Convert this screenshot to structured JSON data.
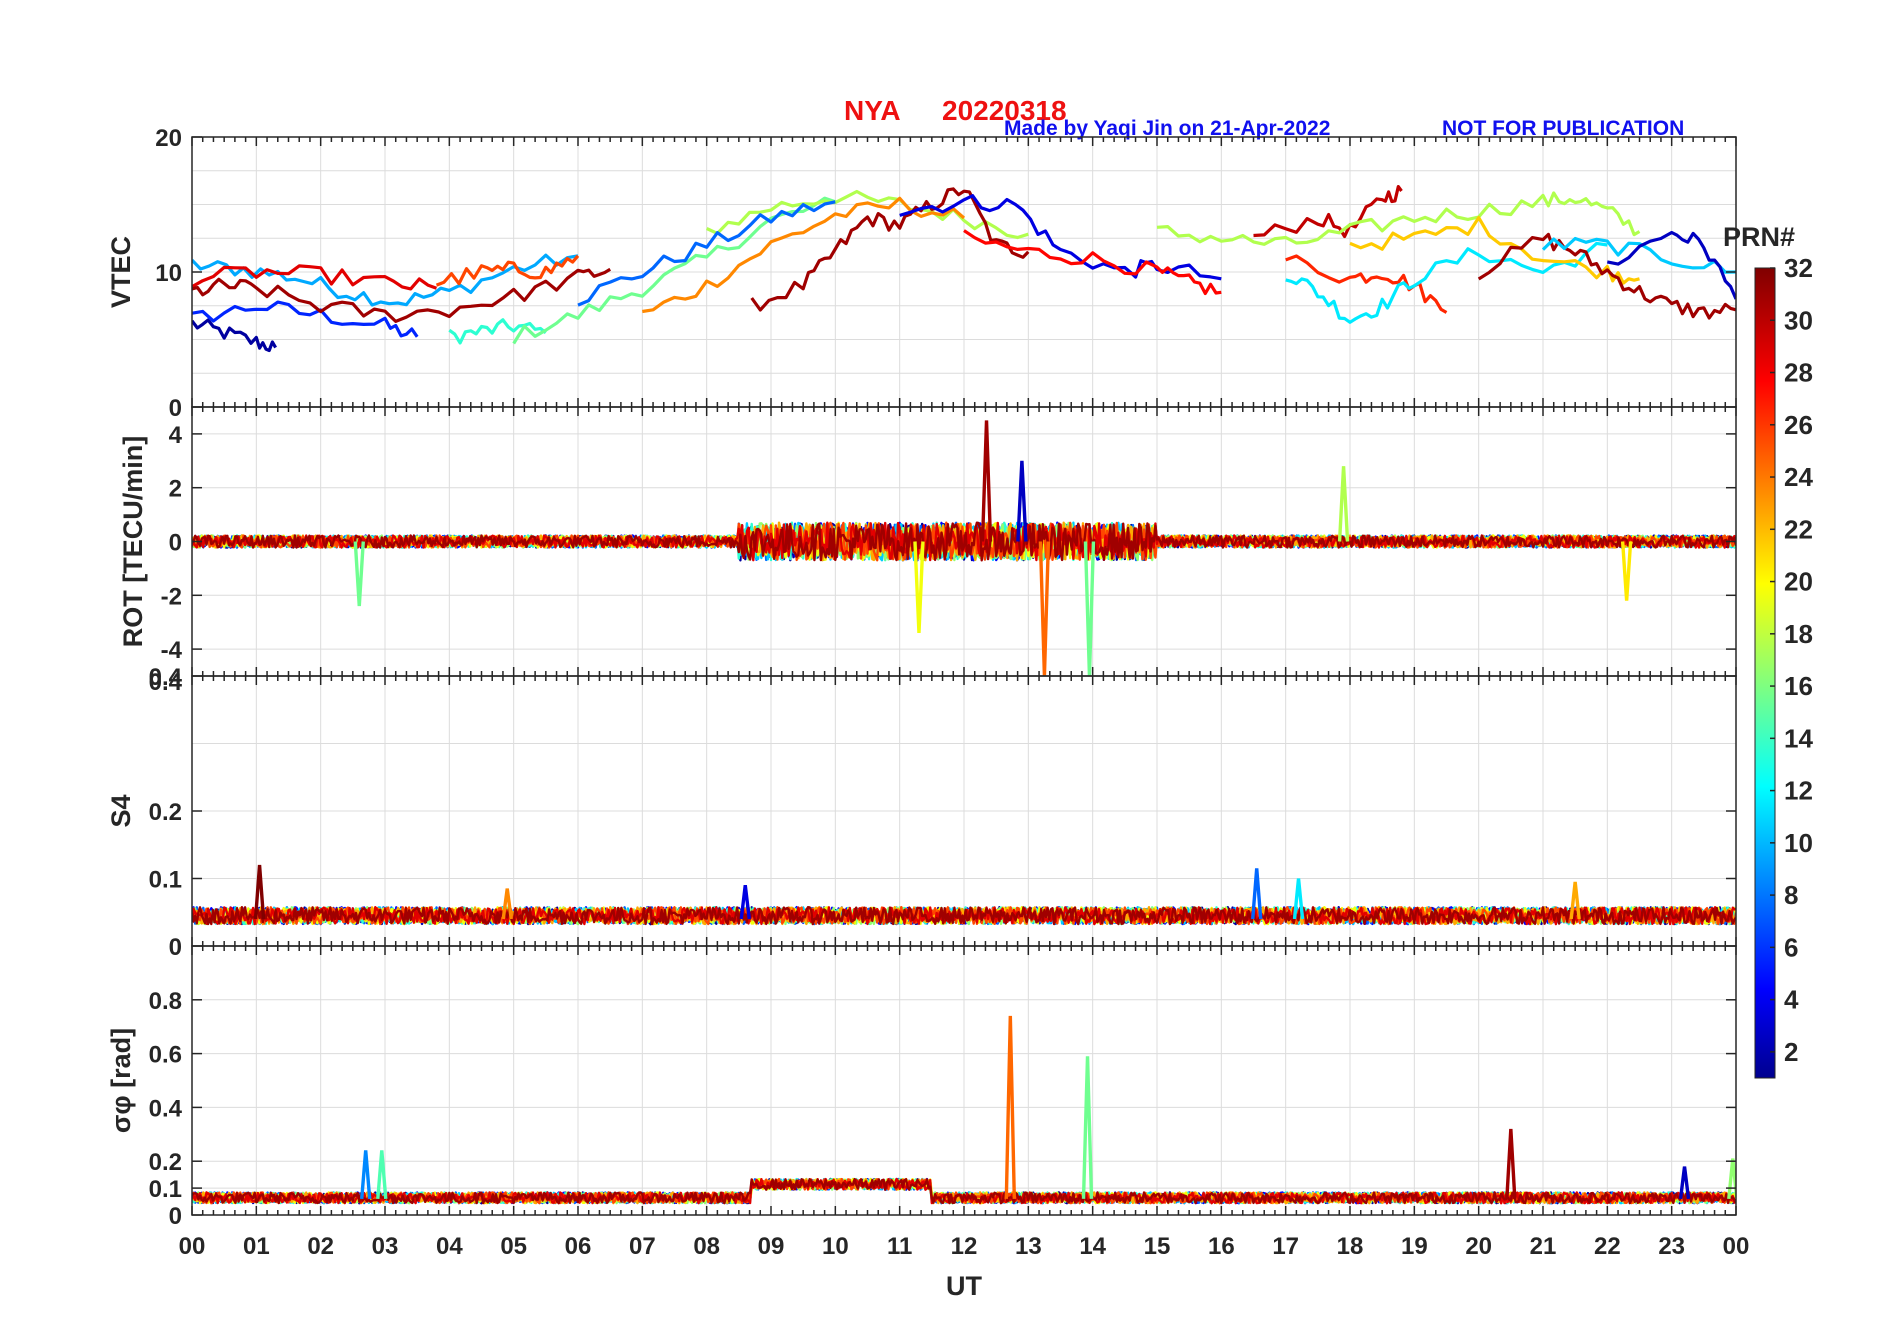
{
  "figure": {
    "station": "NYA",
    "date": "20220318",
    "credit": "Made by Yaqi Jin on 21-Apr-2022",
    "notice": "NOT FOR PUBLICATION",
    "xlabel": "UT",
    "xticks": [
      "00",
      "01",
      "02",
      "03",
      "04",
      "05",
      "06",
      "07",
      "08",
      "09",
      "10",
      "11",
      "12",
      "13",
      "14",
      "15",
      "16",
      "17",
      "18",
      "19",
      "20",
      "21",
      "22",
      "23",
      "00"
    ],
    "colorbar": {
      "label": "PRN#",
      "ticks": [
        2,
        4,
        6,
        8,
        10,
        12,
        14,
        16,
        18,
        20,
        22,
        24,
        26,
        28,
        30,
        32
      ],
      "range": [
        1,
        32
      ],
      "colormap": "jet"
    }
  },
  "chart_data": [
    {
      "type": "line",
      "ylabel": "VTEC",
      "ylim": [
        0,
        20
      ],
      "yticks": [
        0,
        10,
        20
      ],
      "xlim": [
        0,
        24
      ],
      "x_unit": "hours UT",
      "grid": true,
      "series_color_by": "PRN",
      "series": [
        {
          "prn": 2,
          "x": [
            0,
            0.5,
            1,
            1.3
          ],
          "values": [
            6.2,
            5.5,
            4.8,
            4.4
          ]
        },
        {
          "prn": 6,
          "x": [
            0,
            1,
            2,
            3,
            3.5
          ],
          "values": [
            6.5,
            7.5,
            6.8,
            6.0,
            5.2
          ]
        },
        {
          "prn": 10,
          "x": [
            0,
            0.8,
            1.6,
            2.4,
            3.2,
            4,
            5,
            6
          ],
          "values": [
            10.5,
            10.2,
            9.6,
            8.5,
            7.8,
            8.5,
            10.2,
            11.2
          ]
        },
        {
          "prn": 14,
          "x": [
            4,
            4.5,
            5,
            5.5
          ],
          "values": [
            5.2,
            5.6,
            6.0,
            5.5
          ]
        },
        {
          "prn": 16,
          "x": [
            5,
            6,
            7,
            8,
            9,
            10
          ],
          "values": [
            5.2,
            6.8,
            8.8,
            11.0,
            13.8,
            15.2
          ]
        },
        {
          "prn": 18,
          "x": [
            8,
            9,
            10,
            11,
            12,
            13
          ],
          "values": [
            13.0,
            14.8,
            15.6,
            15.0,
            14.0,
            12.8
          ]
        },
        {
          "prn": 8,
          "x": [
            6,
            7,
            8,
            9,
            10
          ],
          "values": [
            8.0,
            10.0,
            12.0,
            14.0,
            15.2
          ]
        },
        {
          "prn": 24,
          "x": [
            7,
            8,
            9,
            10,
            11,
            12
          ],
          "values": [
            6.8,
            9.0,
            12.0,
            14.2,
            15.0,
            14.0
          ]
        },
        {
          "prn": 31,
          "x": [
            8.7,
            9.5,
            10,
            10.5,
            11,
            11.5,
            12,
            12.5,
            13
          ],
          "values": [
            7.5,
            9.0,
            11.5,
            14.0,
            13.5,
            15.0,
            16.2,
            12.0,
            11.5
          ]
        },
        {
          "prn": 4,
          "x": [
            11,
            12,
            12.8,
            13.5,
            14.5,
            15,
            16
          ],
          "values": [
            14.5,
            15.2,
            15.0,
            11.5,
            10.0,
            10.5,
            9.5
          ]
        },
        {
          "prn": 28,
          "x": [
            12,
            13,
            14,
            15,
            15.5,
            16
          ],
          "values": [
            12.5,
            11.5,
            11.0,
            10.0,
            9.2,
            8.5
          ]
        },
        {
          "prn": 30,
          "x": [
            16.5,
            17.5,
            18,
            18.5,
            18.8
          ],
          "values": [
            12.5,
            14.0,
            13.0,
            15.5,
            16.0
          ]
        },
        {
          "prn": 27,
          "x": [
            17,
            18,
            18.5,
            19,
            19.5
          ],
          "values": [
            11.0,
            9.5,
            10.0,
            9.0,
            7.0
          ]
        },
        {
          "prn": 12,
          "x": [
            17,
            17.5,
            18,
            18.5,
            19,
            20,
            21,
            22
          ],
          "values": [
            10.0,
            8.5,
            6.5,
            7.5,
            9.5,
            11.5,
            10.0,
            12.0
          ]
        },
        {
          "prn": 18,
          "x": [
            15,
            16,
            17,
            18,
            19,
            20,
            21,
            21.5,
            22,
            22.5
          ],
          "values": [
            13.0,
            12.5,
            12.0,
            13.0,
            14.0,
            14.5,
            15.2,
            15.5,
            14.5,
            13.0
          ]
        },
        {
          "prn": 22,
          "x": [
            18,
            19,
            20,
            21,
            22,
            22.5
          ],
          "values": [
            12.0,
            12.5,
            13.5,
            11.0,
            10.0,
            9.5
          ]
        },
        {
          "prn": 31,
          "x": [
            20,
            21,
            21.5,
            22,
            22.5,
            23,
            23.5,
            24
          ],
          "values": [
            10.0,
            12.5,
            11.5,
            10.0,
            8.5,
            7.5,
            7.0,
            7.2
          ]
        },
        {
          "prn": 11,
          "x": [
            21,
            22,
            23,
            24
          ],
          "values": [
            12.0,
            12.0,
            11.0,
            10.0
          ]
        },
        {
          "prn": 3,
          "x": [
            22,
            23,
            23.5,
            24
          ],
          "values": [
            10.5,
            13.0,
            12.0,
            8.0
          ]
        },
        {
          "prn": 29,
          "x": [
            0,
            1,
            2,
            3,
            3.8
          ],
          "values": [
            9.5,
            10.0,
            9.8,
            9.2,
            8.8
          ]
        },
        {
          "prn": 31,
          "x": [
            0,
            0.5,
            1,
            2,
            3,
            4,
            5,
            6,
            6.5
          ],
          "values": [
            8.5,
            9.0,
            8.8,
            7.5,
            6.8,
            7.2,
            8.2,
            9.6,
            10.2
          ]
        },
        {
          "prn": 26,
          "x": [
            3.8,
            4.5,
            5,
            5.5,
            6
          ],
          "values": [
            9.2,
            10.0,
            10.2,
            10.0,
            11.2
          ]
        }
      ]
    },
    {
      "type": "line",
      "ylabel": "ROT [TECU/min]",
      "ylim": [
        -5,
        5
      ],
      "yticks": [
        -4,
        -2,
        0,
        2,
        4
      ],
      "xlim": [
        0,
        24
      ],
      "grid": true,
      "series_color_by": "PRN",
      "note": "noisy fluctuations around 0; largest spikes near 12-14 UT",
      "spikes": [
        {
          "prn": 31,
          "x": 12.35,
          "value": 4.5
        },
        {
          "prn": 3,
          "x": 12.9,
          "value": 3.0
        },
        {
          "prn": 25,
          "x": 13.25,
          "value": -5.0
        },
        {
          "prn": 16,
          "x": 13.95,
          "value": -5.0
        },
        {
          "prn": 20,
          "x": 11.3,
          "value": -3.4
        },
        {
          "prn": 16,
          "x": 2.6,
          "value": -2.4
        },
        {
          "prn": 18,
          "x": 17.9,
          "value": 2.8
        },
        {
          "prn": 21,
          "x": 22.3,
          "value": -2.2
        }
      ]
    },
    {
      "type": "line",
      "ylabel": "S4",
      "ylim": [
        0,
        0.4
      ],
      "yticks": [
        0,
        0.1,
        0.2,
        0.4
      ],
      "xlim": [
        0,
        24
      ],
      "grid": true,
      "series_color_by": "PRN",
      "baseline": 0.04,
      "spikes": [
        {
          "prn": 32,
          "x": 1.05,
          "value": 0.12
        },
        {
          "prn": 8,
          "x": 16.55,
          "value": 0.115
        },
        {
          "prn": 4,
          "x": 8.6,
          "value": 0.09
        },
        {
          "prn": 24,
          "x": 4.9,
          "value": 0.085
        },
        {
          "prn": 23,
          "x": 21.5,
          "value": 0.095
        },
        {
          "prn": 12,
          "x": 17.2,
          "value": 0.1
        }
      ]
    },
    {
      "type": "line",
      "ylabel": "σφ [rad]",
      "ylim": [
        0,
        1
      ],
      "yticks": [
        0,
        0.1,
        0.2,
        0.4,
        0.6,
        0.8
      ],
      "xlim": [
        0,
        24
      ],
      "grid": true,
      "series_color_by": "PRN",
      "baseline": 0.06,
      "spikes": [
        {
          "prn": 25,
          "x": 12.72,
          "value": 0.74
        },
        {
          "prn": 16,
          "x": 13.92,
          "value": 0.59
        },
        {
          "prn": 31,
          "x": 20.5,
          "value": 0.32
        },
        {
          "prn": 9,
          "x": 2.7,
          "value": 0.24
        },
        {
          "prn": 15,
          "x": 2.95,
          "value": 0.24
        },
        {
          "prn": 17,
          "x": 23.95,
          "value": 0.21
        },
        {
          "prn": 3,
          "x": 23.2,
          "value": 0.18
        }
      ]
    }
  ]
}
